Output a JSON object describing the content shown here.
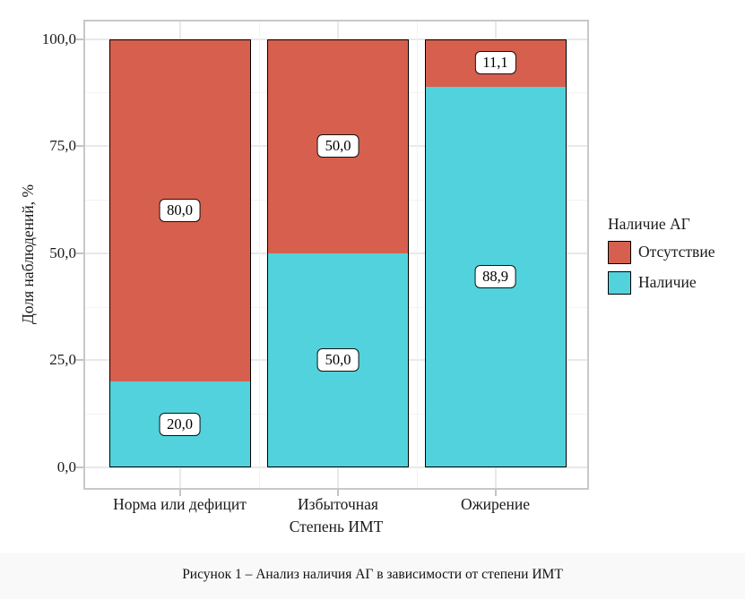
{
  "chart_data": {
    "type": "bar",
    "subtype": "stacked-100-percent",
    "categories": [
      "Норма или дефицит",
      "Избыточная",
      "Ожирение"
    ],
    "series": [
      {
        "name": "Отсутствие",
        "color": "#d6604d",
        "values": [
          80.0,
          50.0,
          11.1
        ],
        "labels": [
          "80,0",
          "50,0",
          "11,1"
        ]
      },
      {
        "name": "Наличие",
        "color": "#52d2dc",
        "values": [
          20.0,
          50.0,
          88.9
        ],
        "labels": [
          "20,0",
          "50,0",
          "88,9"
        ]
      }
    ],
    "xlabel": "Степень ИМТ",
    "ylabel": "Доля наблюдений, %",
    "ylim": [
      0,
      100
    ],
    "yticks": [
      0,
      25,
      50,
      75,
      100
    ],
    "ytick_labels": [
      "0,0",
      "25,0",
      "50,0",
      "75,0",
      "100,0"
    ],
    "yticks_minor": [
      12.5,
      37.5,
      62.5,
      87.5
    ],
    "grid": "major+minor",
    "legend_title": "Наличие АГ",
    "legend_position": "right",
    "bar_outline_color": "#000000",
    "panel_border_color": "#c8c8c8"
  },
  "axes": {
    "y_title": "Доля наблюдений, %",
    "x_title": "Степень ИМТ"
  },
  "legend": {
    "title": "Наличие АГ",
    "items": [
      {
        "label": "Отсутствие",
        "color": "#d6604d"
      },
      {
        "label": "Наличие",
        "color": "#52d2dc"
      }
    ]
  },
  "caption": "Рисунок 1 – Анализ наличия АГ в зависимости от степени ИМТ"
}
